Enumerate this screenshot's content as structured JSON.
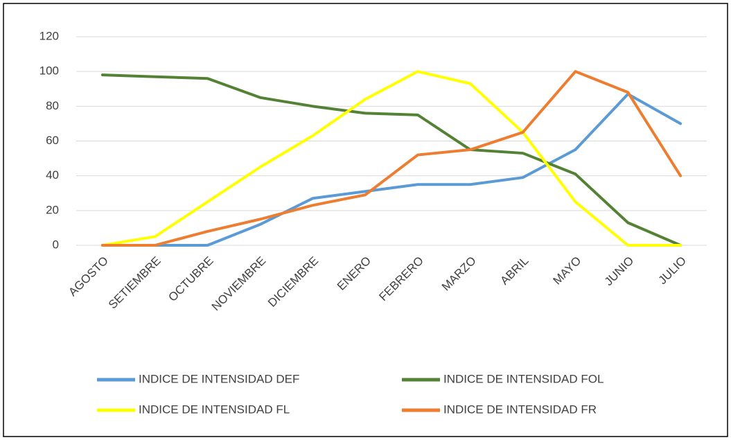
{
  "chart_data": {
    "type": "line",
    "categories": [
      "AGOSTO",
      "SETIEMBRE",
      "OCTUBRE",
      "NOVIEMBRE",
      "DICIEMBRE",
      "ENERO",
      "FEBRERO",
      "MARZO",
      "ABRIL",
      "MAYO",
      "JUNIO",
      "JULIO"
    ],
    "series": [
      {
        "name": "INDICE DE INTENSIDAD DEF",
        "color": "#5b9bd5",
        "values": [
          0,
          0,
          0,
          12,
          27,
          31,
          35,
          35,
          39,
          55,
          87,
          70
        ]
      },
      {
        "name": "INDICE DE INTENSIDAD FOL",
        "color": "#548235",
        "values": [
          98,
          97,
          96,
          85,
          80,
          76,
          75,
          55,
          53,
          41,
          13,
          0
        ]
      },
      {
        "name": "INDICE DE INTENSIDAD FL",
        "color": "#ffff00",
        "values": [
          0,
          5,
          25,
          45,
          63,
          84,
          100,
          93,
          65,
          25,
          0,
          0
        ]
      },
      {
        "name": "INDICE DE INTENSIDAD FR",
        "color": "#ed7d31",
        "values": [
          0,
          0,
          8,
          15,
          23,
          29,
          52,
          55,
          65,
          100,
          88,
          40
        ]
      }
    ],
    "ylim": [
      0,
      120
    ],
    "yticks": [
      0,
      20,
      40,
      60,
      80,
      100,
      120
    ],
    "grid": true,
    "legend": "bottom"
  }
}
